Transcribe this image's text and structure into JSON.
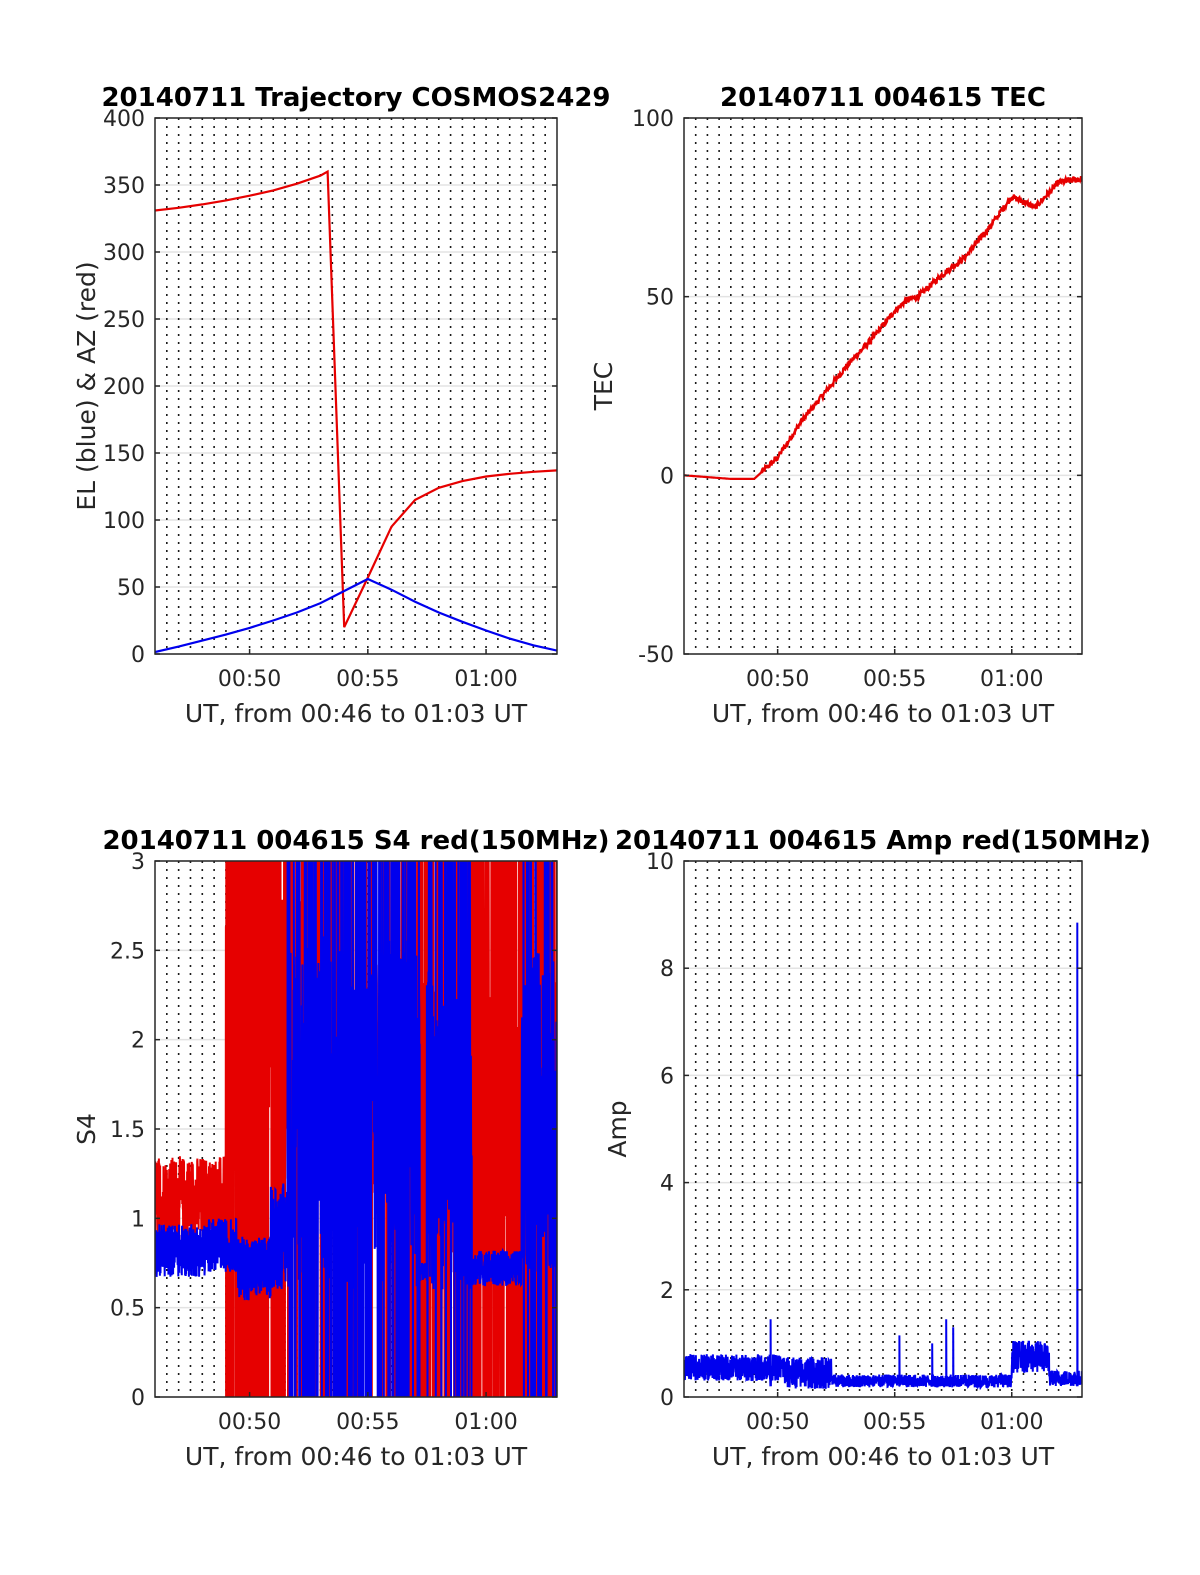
{
  "chart_data": [
    {
      "type": "line",
      "title": "20140711 Trajectory COSMOS2429",
      "xlabel": "UT, from 00:46 to 01:03 UT",
      "ylabel": "EL (blue) & AZ (red)",
      "x_unit": "minutes after 00:00 UT",
      "xlim": [
        46,
        63
      ],
      "ylim": [
        0,
        400
      ],
      "xticks": [
        50,
        55,
        60
      ],
      "xtick_labels": [
        "00:50",
        "00:55",
        "01:00"
      ],
      "yticks": [
        0,
        50,
        100,
        150,
        200,
        250,
        300,
        350,
        400
      ],
      "ytick_labels": [
        "0",
        "50",
        "100",
        "150",
        "200",
        "250",
        "300",
        "350",
        "400"
      ],
      "grid": "dotted vertical every 0.5 min, light horizontal",
      "series": [
        {
          "color": "#e60000",
          "x": [
            46,
            47,
            48,
            49,
            50,
            51,
            52,
            53,
            53.3,
            54,
            55,
            56,
            57,
            58,
            59,
            60,
            61,
            62,
            63
          ],
          "y": [
            331,
            333,
            335.5,
            338.5,
            342,
            346,
            351,
            357,
            360,
            20,
            57,
            95,
            115,
            124,
            129,
            132.5,
            134.5,
            136,
            137
          ]
        },
        {
          "color": "#0000ee",
          "x": [
            46,
            47,
            48,
            49,
            50,
            51,
            52,
            53,
            54,
            55,
            56,
            57,
            58,
            59,
            60,
            61,
            62,
            63
          ],
          "y": [
            1.5,
            5.5,
            10,
            14.5,
            19.5,
            25,
            31,
            38,
            47,
            56,
            48,
            39,
            31,
            24,
            17.5,
            11.5,
            6.5,
            2.5
          ]
        }
      ]
    },
    {
      "type": "line",
      "title": "20140711 004615 TEC",
      "xlabel": "UT, from 00:46 to 01:03 UT",
      "ylabel": "TEC",
      "x_unit": "minutes after 00:00 UT",
      "xlim": [
        46,
        63
      ],
      "ylim": [
        -50,
        100
      ],
      "xticks": [
        50,
        55,
        60
      ],
      "xtick_labels": [
        "00:50",
        "00:55",
        "01:00"
      ],
      "yticks": [
        -50,
        0,
        50,
        100
      ],
      "ytick_labels": [
        "-50",
        "0",
        "50",
        "100"
      ],
      "grid": "dotted vertical every 0.5 min, light horizontal",
      "series": [
        {
          "color": "#e60000",
          "x": [
            46,
            47,
            48,
            49,
            49.5,
            50,
            51,
            52,
            53,
            54,
            55,
            55.5,
            56,
            57,
            58,
            59,
            60,
            61,
            62,
            63
          ],
          "y": [
            0,
            -0.5,
            -1,
            -1,
            2,
            5,
            15,
            23,
            31,
            38,
            46,
            49,
            50,
            56,
            61,
            69,
            78,
            75,
            82,
            83
          ]
        }
      ]
    },
    {
      "type": "line",
      "title": "20140711 004615 S4 red(150MHz)",
      "xlabel": "UT, from 00:46 to 01:03 UT",
      "ylabel": "S4",
      "x_unit": "minutes after 00:00 UT",
      "xlim": [
        46,
        63
      ],
      "ylim": [
        0,
        3
      ],
      "xticks": [
        50,
        55,
        60
      ],
      "xtick_labels": [
        "00:50",
        "00:55",
        "01:00"
      ],
      "yticks": [
        0,
        0.5,
        1,
        1.5,
        2,
        2.5,
        3
      ],
      "ytick_labels": [
        "0",
        "0.5",
        "1",
        "1.5",
        "2",
        "2.5",
        "3"
      ],
      "grid": "dotted vertical every 0.5 min, light horizontal",
      "series": [
        {
          "color": "#e60000",
          "segments": [
            [
              46,
              49,
              1.1,
              0.25,
              0
            ],
            [
              49,
              51.3,
              2.2,
              0.6,
              0.6
            ],
            [
              51.3,
              55,
              2.0,
              0.8,
              0.45
            ],
            [
              55,
              57.3,
              1.8,
              0.7,
              0.35
            ],
            [
              57.3,
              63,
              1.6,
              0.9,
              0.5
            ]
          ]
        },
        {
          "color": "#0000ee",
          "segments": [
            [
              46,
              48.2,
              0.82,
              0.15,
              0
            ],
            [
              48.2,
              49.5,
              0.85,
              0.15,
              0
            ],
            [
              49.5,
              50.9,
              0.72,
              0.18,
              0
            ],
            [
              50.9,
              51.6,
              0.9,
              0.3,
              0
            ],
            [
              51.6,
              57.2,
              1.6,
              1.0,
              0.3
            ],
            [
              57.2,
              57.5,
              0.7,
              0.05,
              0
            ],
            [
              57.5,
              59.4,
              1.5,
              0.9,
              0.2
            ],
            [
              59.4,
              61.5,
              0.72,
              0.1,
              0
            ],
            [
              61.5,
              63,
              1.6,
              0.9,
              0.15
            ]
          ]
        }
      ]
    },
    {
      "type": "line",
      "title": "20140711 004615 Amp red(150MHz)",
      "xlabel": "UT, from 00:46 to 01:03 UT",
      "ylabel": "Amp",
      "x_unit": "minutes after 00:00 UT",
      "xlim": [
        46,
        63
      ],
      "ylim": [
        0,
        10
      ],
      "xticks": [
        50,
        55,
        60
      ],
      "xtick_labels": [
        "00:50",
        "00:55",
        "01:00"
      ],
      "yticks": [
        0,
        2,
        4,
        6,
        8,
        10
      ],
      "ytick_labels": [
        "0",
        "2",
        "4",
        "6",
        "8",
        "10"
      ],
      "grid": "dotted vertical every 0.5 min, light horizontal",
      "series": [
        {
          "color": "#0000ee",
          "segments": [
            [
              46,
              50.3,
              0.55,
              0.25
            ],
            [
              50.3,
              52.3,
              0.45,
              0.3
            ],
            [
              52.3,
              60.0,
              0.3,
              0.12
            ],
            [
              60.0,
              61.6,
              0.75,
              0.3
            ],
            [
              61.6,
              63,
              0.35,
              0.15
            ]
          ],
          "spikes": [
            [
              49.7,
              1.45
            ],
            [
              55.2,
              1.15
            ],
            [
              56.6,
              1.0
            ],
            [
              57.2,
              1.45
            ],
            [
              57.5,
              1.3
            ],
            [
              62.8,
              8.85
            ]
          ]
        }
      ]
    }
  ]
}
